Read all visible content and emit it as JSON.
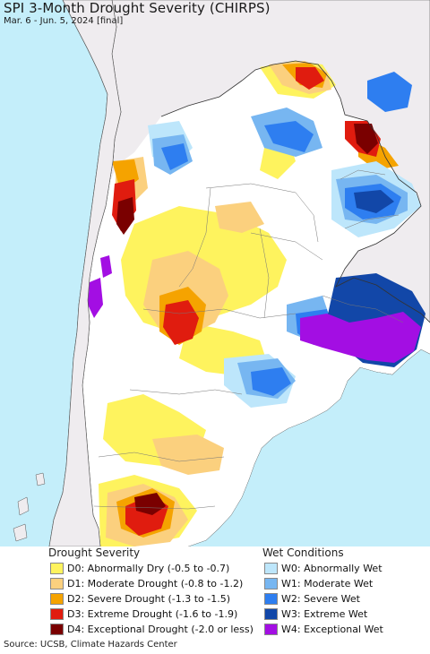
{
  "title": "SPI 3-Month Drought Severity (CHIRPS)",
  "subtitle": "Mar. 6 - Jun. 5, 2024 [final]",
  "colors": {
    "ocean": "#c4eefa",
    "land_outside": "#efecef",
    "normal": "#ffffff",
    "d0": "#fef35e",
    "d1": "#fbd07e",
    "d2": "#f5a300",
    "d3": "#e01c0f",
    "d4": "#7a0000",
    "w0": "#bde6fb",
    "w1": "#77b6f1",
    "w2": "#2e7ef0",
    "w3": "#1247a8",
    "w4": "#a30ee3"
  },
  "legend": {
    "drought_title": "Drought Severity",
    "wet_title": "Wet Conditions",
    "drought": [
      {
        "label": "D0: Abnormally Dry (-0.5 to -0.7)",
        "color": "#fef35e"
      },
      {
        "label": "D1: Moderate Drought (-0.8 to -1.2)",
        "color": "#fbd07e"
      },
      {
        "label": "D2: Severe Drought (-1.3 to -1.5)",
        "color": "#f5a300"
      },
      {
        "label": "D3: Extreme Drought (-1.6 to -1.9)",
        "color": "#e01c0f"
      },
      {
        "label": "D4: Exceptional Drought (-2.0 or less)",
        "color": "#7a0000"
      }
    ],
    "wet": [
      {
        "label": "W0: Abnormally Wet",
        "color": "#bde6fb"
      },
      {
        "label": "W1: Moderate Wet",
        "color": "#77b6f1"
      },
      {
        "label": "W2: Severe Wet",
        "color": "#2e7ef0"
      },
      {
        "label": "W3: Extreme Wet",
        "color": "#1247a8"
      },
      {
        "label": "W4: Exceptional Wet",
        "color": "#a30ee3"
      }
    ]
  },
  "source": "Source: UCSB, Climate Hazards Center"
}
